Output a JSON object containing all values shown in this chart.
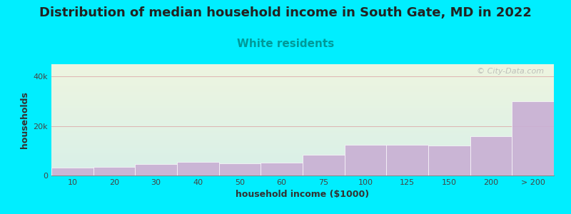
{
  "title": "Distribution of median household income in South Gate, MD in 2022",
  "subtitle": "White residents",
  "xlabel": "household income ($1000)",
  "ylabel": "households",
  "categories": [
    "10",
    "20",
    "30",
    "40",
    "50",
    "60",
    "75",
    "100",
    "125",
    "150",
    "200",
    "> 200"
  ],
  "values": [
    3200,
    3500,
    4500,
    5500,
    5000,
    5200,
    8500,
    12500,
    12500,
    12000,
    16000,
    30000
  ],
  "bar_color": "#c9afd4",
  "bar_edge_color": "#ffffff",
  "background_outer": "#00eeff",
  "background_plot_top": "#eef5e0",
  "background_plot_bottom": "#d8f0e8",
  "title_fontsize": 13,
  "subtitle_fontsize": 11,
  "subtitle_color": "#009999",
  "axis_label_fontsize": 9,
  "tick_fontsize": 8,
  "ylim": [
    0,
    45000
  ],
  "yticks": [
    0,
    20000,
    40000
  ],
  "ytick_labels": [
    "0",
    "20k",
    "40k"
  ],
  "watermark": "© City-Data.com",
  "watermark_color": "#aaaaaa",
  "title_color": "#222222"
}
